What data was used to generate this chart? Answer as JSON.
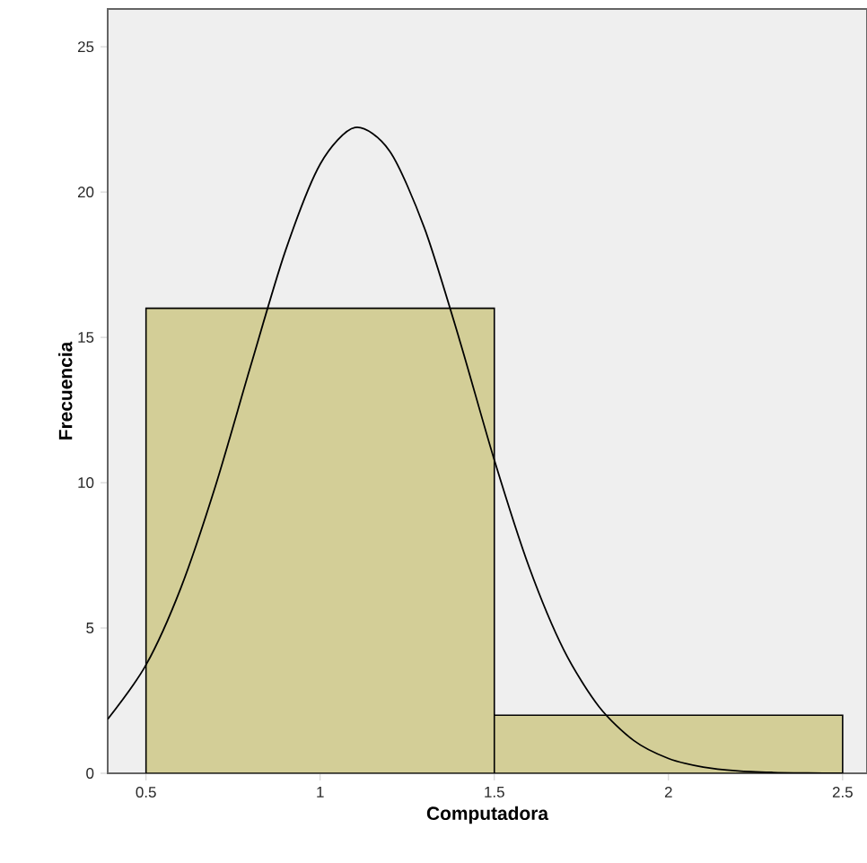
{
  "chart_data": {
    "type": "histogram",
    "xlabel": "Computadora",
    "ylabel": "Frecuencia",
    "xlim": [
      0.39,
      2.57
    ],
    "ylim": [
      0,
      26.3
    ],
    "xticks": [
      0.5,
      1,
      1.5,
      2,
      2.5
    ],
    "yticks": [
      0,
      5,
      10,
      15,
      20,
      25
    ],
    "series": [
      {
        "color": "#d3ce97",
        "bins": [
          0.5,
          1.5,
          2.5
        ],
        "values": [
          16,
          2
        ]
      },
      {
        "type": "line",
        "color": "#000000",
        "x": [
          0.39,
          0.5,
          0.6,
          0.7,
          0.8,
          0.9,
          1.0,
          1.1,
          1.2,
          1.3,
          1.4,
          1.5,
          1.6,
          1.7,
          1.8,
          1.9,
          2.0,
          2.1,
          2.2,
          2.3,
          2.4,
          2.5
        ],
        "values": [
          1.86,
          3.73,
          6.38,
          9.91,
          14.0,
          17.97,
          20.96,
          22.22,
          21.4,
          18.74,
          14.92,
          10.78,
          7.09,
          4.23,
          2.3,
          1.13,
          0.51,
          0.21,
          0.08,
          0.03,
          0.01,
          0.0
        ]
      }
    ]
  }
}
